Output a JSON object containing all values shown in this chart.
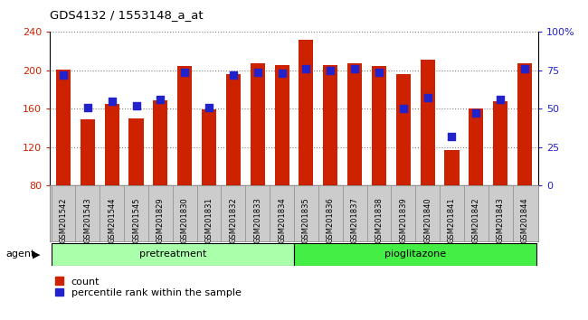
{
  "title": "GDS4132 / 1553148_a_at",
  "samples": [
    "GSM201542",
    "GSM201543",
    "GSM201544",
    "GSM201545",
    "GSM201829",
    "GSM201830",
    "GSM201831",
    "GSM201832",
    "GSM201833",
    "GSM201834",
    "GSM201835",
    "GSM201836",
    "GSM201837",
    "GSM201838",
    "GSM201839",
    "GSM201840",
    "GSM201841",
    "GSM201842",
    "GSM201843",
    "GSM201844"
  ],
  "counts": [
    201,
    149,
    165,
    150,
    169,
    205,
    159,
    196,
    207,
    206,
    232,
    206,
    207,
    205,
    196,
    211,
    117,
    160,
    168,
    207
  ],
  "percentiles": [
    72,
    51,
    55,
    52,
    56,
    74,
    51,
    72,
    74,
    73,
    76,
    75,
    76,
    74,
    50,
    57,
    32,
    47,
    56,
    76
  ],
  "pretreatment_count": 10,
  "pioglitazone_count": 10,
  "ylim_left": [
    80,
    240
  ],
  "ylim_right": [
    0,
    100
  ],
  "yticks_left": [
    80,
    120,
    160,
    200,
    240
  ],
  "yticks_right": [
    0,
    25,
    50,
    75,
    100
  ],
  "right_tick_labels": [
    "0",
    "25",
    "50",
    "75",
    "100%"
  ],
  "bar_color": "#cc2200",
  "percentile_color": "#2222cc",
  "pretreatment_color": "#aaffaa",
  "pioglitazone_color": "#44ee44",
  "xtick_bg_color": "#cccccc",
  "agent_label": "agent",
  "legend_count": "count",
  "legend_percentile": "percentile rank within the sample",
  "bar_width": 0.6
}
